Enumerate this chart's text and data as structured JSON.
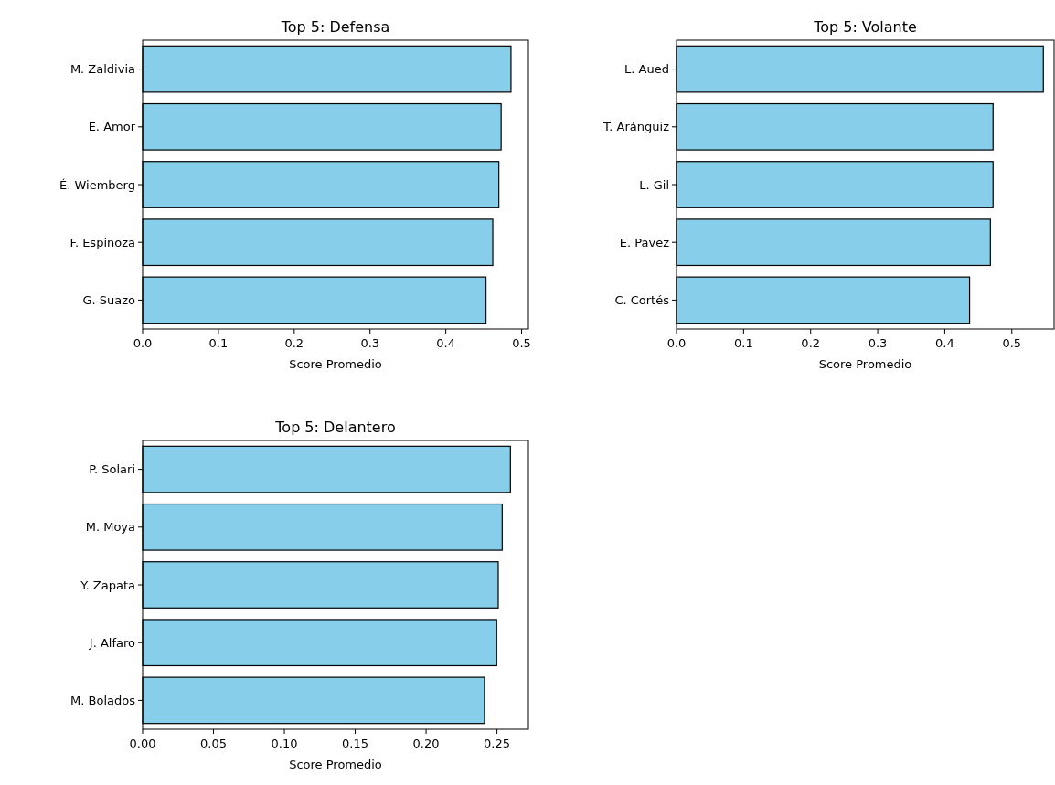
{
  "chart_data": [
    {
      "type": "bar",
      "orientation": "horizontal",
      "title": "Top 5: Defensa",
      "xlabel": "Score Promedio",
      "categories": [
        "M. Zaldivia",
        "E. Amor",
        "É. Wiemberg",
        "F. Espinoza",
        "G. Suazo"
      ],
      "values": [
        0.486,
        0.473,
        0.47,
        0.462,
        0.453
      ],
      "color": "#87ceeb",
      "xlim": [
        0,
        0.509
      ],
      "xticks": [
        {
          "value": 0,
          "label": "0.0"
        },
        0.1,
        0.2,
        0.3,
        0.4,
        0.5
      ],
      "grid": false
    },
    {
      "type": "bar",
      "orientation": "horizontal",
      "title": "Top 5: Volante",
      "xlabel": "Score Promedio",
      "categories": [
        "L. Aued",
        "T. Aránguiz",
        "L. Gil",
        "E. Pavez",
        "C. Cortés"
      ],
      "values": [
        0.547,
        0.472,
        0.472,
        0.468,
        0.437
      ],
      "color": "#87ceeb",
      "xlim": [
        0,
        0.563
      ],
      "xticks": [
        {
          "value": 0,
          "label": "0.0"
        },
        0.1,
        0.2,
        0.3,
        0.4,
        0.5
      ],
      "grid": false
    },
    {
      "type": "bar",
      "orientation": "horizontal",
      "title": "Top 5: Delantero",
      "xlabel": "Score Promedio",
      "categories": [
        "P. Solari",
        "M. Moya",
        "Y. Zapata",
        "J. Alfaro",
        "M. Bolados"
      ],
      "values": [
        0.2595,
        0.2537,
        0.2509,
        0.2498,
        0.2412
      ],
      "color": "#87ceeb",
      "xlim": [
        0,
        0.2722
      ],
      "xticks": [
        {
          "value": 0,
          "label": "0.00"
        },
        {
          "value": 0.05,
          "label": "0.05"
        },
        {
          "value": 0.1,
          "label": "0.10"
        },
        {
          "value": 0.15,
          "label": "0.15"
        },
        {
          "value": 0.2,
          "label": "0.20"
        },
        {
          "value": 0.25,
          "label": "0.25"
        }
      ],
      "grid": false
    }
  ]
}
